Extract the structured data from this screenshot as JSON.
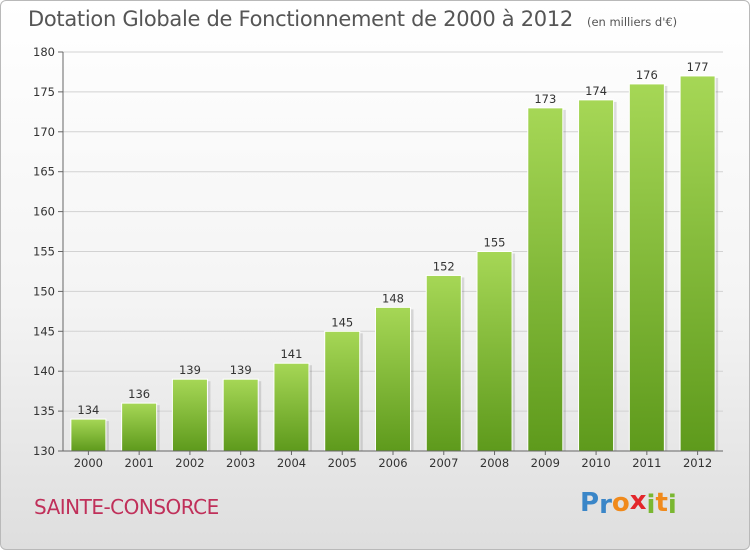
{
  "chart_data": {
    "type": "bar",
    "title": "Dotation Globale de Fonctionnement de 2000 à 2012",
    "unit_label": "(en milliers d'€)",
    "categories": [
      "2000",
      "2001",
      "2002",
      "2003",
      "2004",
      "2005",
      "2006",
      "2007",
      "2008",
      "2009",
      "2010",
      "2011",
      "2012"
    ],
    "values": [
      134,
      136,
      139,
      139,
      141,
      145,
      148,
      152,
      155,
      173,
      174,
      176,
      177
    ],
    "value_labels": [
      "134",
      "136",
      "139",
      "139",
      "141",
      "145",
      "148",
      "152",
      "155",
      "173",
      "174",
      "176",
      "177"
    ],
    "ylim": [
      130,
      180
    ],
    "yticks": [
      130,
      135,
      140,
      145,
      150,
      155,
      160,
      165,
      170,
      175,
      180
    ],
    "ytick_labels": [
      "130",
      "135",
      "140",
      "145",
      "150",
      "155",
      "160",
      "165",
      "170",
      "175",
      "180"
    ],
    "grid": true,
    "bar_color": "#7ab731",
    "bar_color_light": "#a6d756",
    "bar_color_dark": "#5e9a1c"
  },
  "footer": {
    "commune": "SAINTE-CONSORCE",
    "commune_color": "#c0305a"
  },
  "logo": {
    "letters": [
      "P",
      "r",
      "o",
      "x",
      "i",
      "t",
      "i"
    ],
    "colors": [
      "#3a86c8",
      "#3a86c8",
      "#f08a1c",
      "#e3262b",
      "#7ab731",
      "#f08a1c",
      "#7ab731"
    ]
  }
}
